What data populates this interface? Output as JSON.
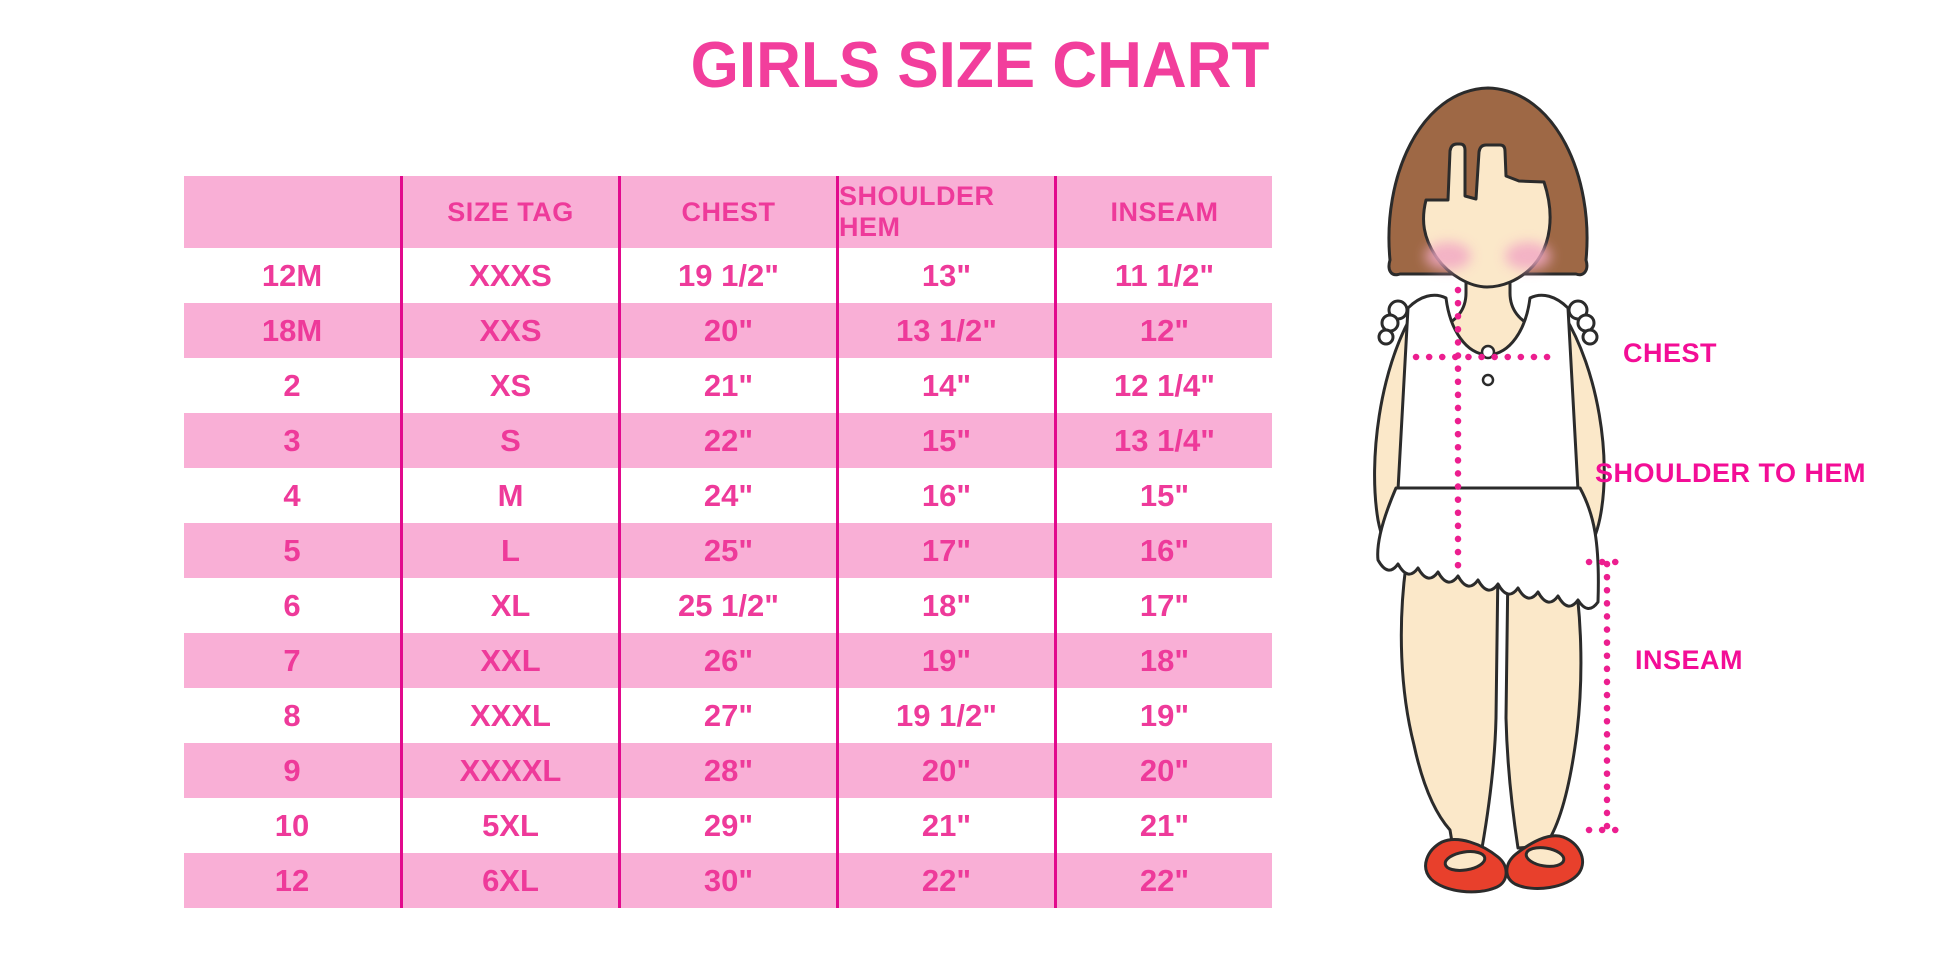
{
  "title": "GIRLS SIZE CHART",
  "table": {
    "columns": [
      "",
      "SIZE TAG",
      "CHEST",
      "SHOULDER HEM",
      "INSEAM"
    ],
    "rows": [
      [
        "12M",
        "XXXS",
        "19 1/2\"",
        "13\"",
        "11 1/2\""
      ],
      [
        "18M",
        "XXS",
        "20\"",
        "13 1/2\"",
        "12\""
      ],
      [
        "2",
        "XS",
        "21\"",
        "14\"",
        "12 1/4\""
      ],
      [
        "3",
        "S",
        "22\"",
        "15\"",
        "13 1/4\""
      ],
      [
        "4",
        "M",
        "24\"",
        "16\"",
        "15\""
      ],
      [
        "5",
        "L",
        "25\"",
        "17\"",
        "16\""
      ],
      [
        "6",
        "XL",
        "25 1/2\"",
        "18\"",
        "17\""
      ],
      [
        "7",
        "XXL",
        "26\"",
        "19\"",
        "18\""
      ],
      [
        "8",
        "XXXL",
        "27\"",
        "19 1/2\"",
        "19\""
      ],
      [
        "9",
        "XXXXL",
        "28\"",
        "20\"",
        "20\""
      ],
      [
        "10",
        "5XL",
        "29\"",
        "21\"",
        "21\""
      ],
      [
        "12",
        "6XL",
        "30\"",
        "22\"",
        "22\""
      ]
    ]
  },
  "diagram": {
    "labels": {
      "chest": "CHEST",
      "shoulder_to_hem": "SHOULDER TO HEM",
      "inseam": "INSEAM"
    }
  },
  "colors": {
    "title_pink": "#F23E9C",
    "row_pink": "#F9AFD6",
    "divider_magenta": "#E20A8D",
    "cell_text": "#EE3A9A",
    "label_magenta": "#F30D96",
    "dotted_line": "#EC1E8F",
    "hair_brown": "#9E6845",
    "skin": "#FBE8C9",
    "blush": "#F2A9C4",
    "shoe_red": "#E8402C",
    "outline": "#2B2B2B"
  },
  "chart_data": {
    "type": "table",
    "title": "GIRLS SIZE CHART",
    "columns": [
      "",
      "SIZE TAG",
      "CHEST",
      "SHOULDER HEM",
      "INSEAM"
    ],
    "rows": [
      [
        "12M",
        "XXXS",
        "19 1/2\"",
        "13\"",
        "11 1/2\""
      ],
      [
        "18M",
        "XXS",
        "20\"",
        "13 1/2\"",
        "12\""
      ],
      [
        "2",
        "XS",
        "21\"",
        "14\"",
        "12 1/4\""
      ],
      [
        "3",
        "S",
        "22\"",
        "15\"",
        "13 1/4\""
      ],
      [
        "4",
        "M",
        "24\"",
        "16\"",
        "15\""
      ],
      [
        "5",
        "L",
        "25\"",
        "17\"",
        "16\""
      ],
      [
        "6",
        "XL",
        "25 1/2\"",
        "18\"",
        "17\""
      ],
      [
        "7",
        "XXL",
        "26\"",
        "19\"",
        "18\""
      ],
      [
        "8",
        "XXXL",
        "27\"",
        "19 1/2\"",
        "19\""
      ],
      [
        "9",
        "XXXXL",
        "28\"",
        "20\"",
        "20\""
      ],
      [
        "10",
        "5XL",
        "29\"",
        "21\"",
        "21\""
      ],
      [
        "12",
        "6XL",
        "30\"",
        "22\"",
        "22\""
      ]
    ],
    "legend_position": "none",
    "grid": "vertical-dividers-only",
    "row_striping": [
      "white",
      "pink"
    ]
  }
}
